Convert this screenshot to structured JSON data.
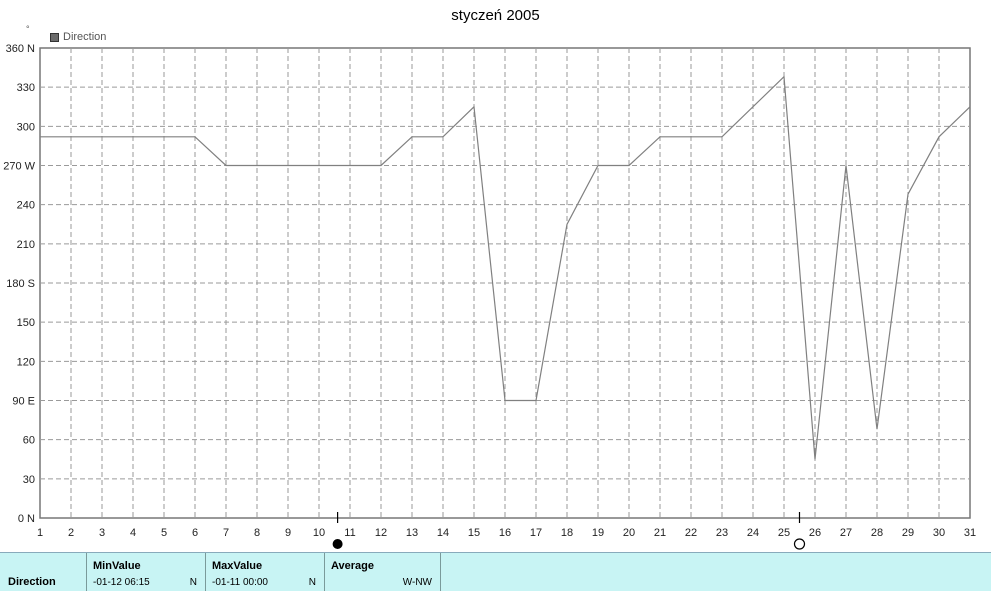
{
  "title": "styczeń 2005",
  "legend": {
    "label": "Direction",
    "unit": "°"
  },
  "chart_data": {
    "type": "line",
    "title": "styczeń 2005",
    "x": [
      1,
      2,
      3,
      4,
      5,
      6,
      7,
      8,
      9,
      10,
      11,
      12,
      13,
      14,
      15,
      16,
      17,
      18,
      19,
      20,
      21,
      22,
      23,
      24,
      25,
      26,
      27,
      28,
      29,
      30,
      31
    ],
    "ylim": [
      0,
      360
    ],
    "xlim": [
      1,
      31
    ],
    "yticks": [
      {
        "value": 0,
        "label": "0 N"
      },
      {
        "value": 30,
        "label": "30"
      },
      {
        "value": 60,
        "label": "60"
      },
      {
        "value": 90,
        "label": "90 E"
      },
      {
        "value": 120,
        "label": "120"
      },
      {
        "value": 150,
        "label": "150"
      },
      {
        "value": 180,
        "label": "180 S"
      },
      {
        "value": 210,
        "label": "210"
      },
      {
        "value": 240,
        "label": "240"
      },
      {
        "value": 270,
        "label": "270 W"
      },
      {
        "value": 300,
        "label": "300"
      },
      {
        "value": 330,
        "label": "330"
      },
      {
        "value": 360,
        "label": "360 N"
      }
    ],
    "grid": true,
    "legend_position": "top-left",
    "series": [
      {
        "name": "Direction",
        "color": "#808080",
        "points": [
          [
            1,
            292
          ],
          [
            6,
            292
          ],
          [
            7,
            270
          ],
          [
            12,
            270
          ],
          [
            13,
            292
          ],
          [
            14,
            292
          ],
          [
            15,
            315
          ],
          [
            16,
            90
          ],
          [
            17,
            90
          ],
          [
            18,
            225
          ],
          [
            19,
            270
          ],
          [
            20,
            270
          ],
          [
            21,
            292
          ],
          [
            23,
            292
          ],
          [
            25,
            338
          ],
          [
            26,
            45
          ],
          [
            27,
            270
          ],
          [
            28,
            68
          ],
          [
            29,
            248
          ],
          [
            30,
            292
          ],
          [
            31,
            315
          ]
        ]
      }
    ],
    "moon_phases": [
      {
        "x": 10.6,
        "phase": "full-moon-icon"
      },
      {
        "x": 25.5,
        "phase": "new-moon-icon"
      }
    ]
  },
  "stats": {
    "row_label": "Direction",
    "min": {
      "header": "MinValue",
      "date": "-01-12  06:15",
      "dir": "N"
    },
    "max": {
      "header": "MaxValue",
      "date": "-01-11  00:00",
      "dir": "N"
    },
    "avg": {
      "header": "Average",
      "value": "W-NW"
    }
  }
}
